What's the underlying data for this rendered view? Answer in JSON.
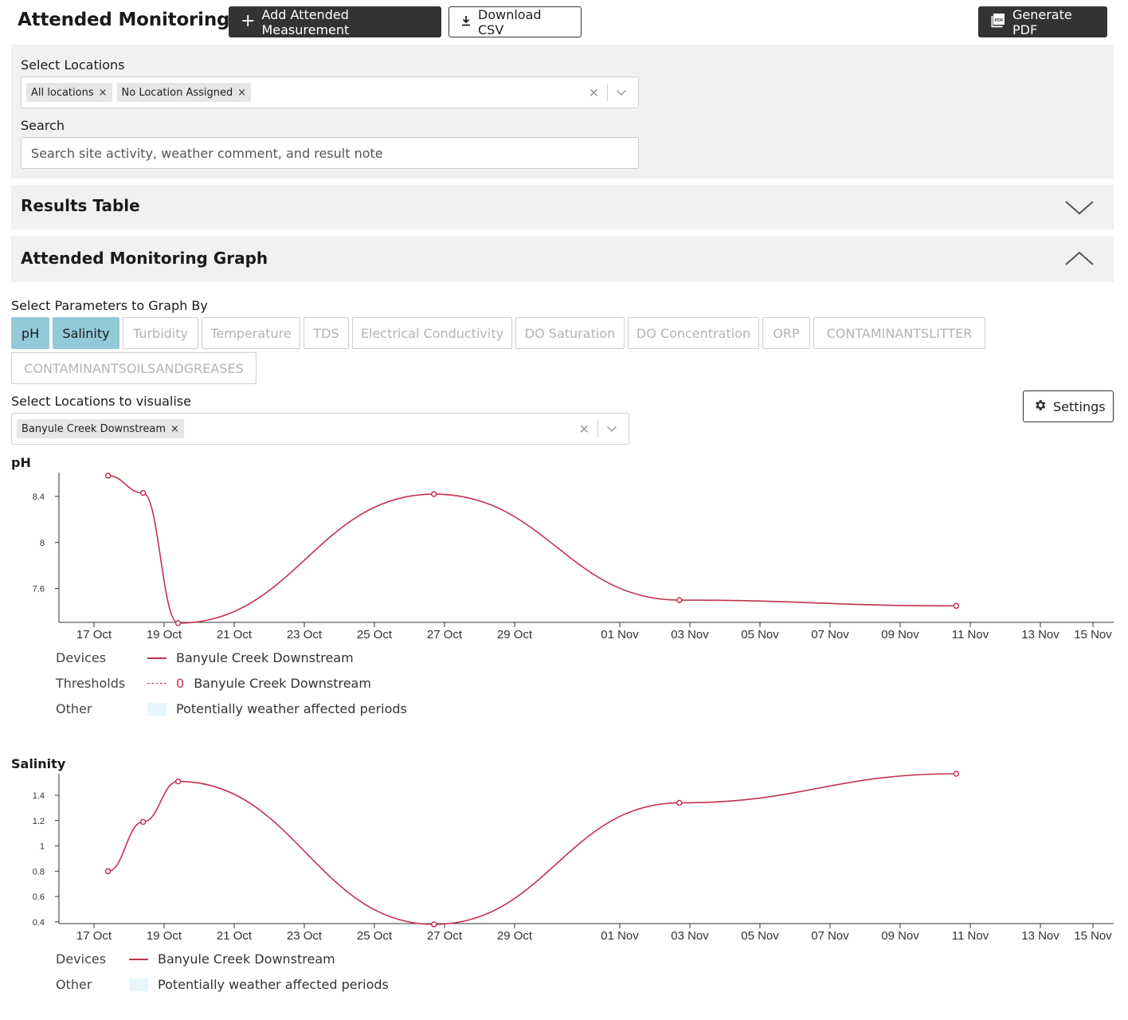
{
  "header": {
    "title": "Attended Monitoring",
    "add_label": "Add Attended Measurement",
    "csv_label": "Download CSV",
    "pdf_label": "Generate PDF"
  },
  "filters": {
    "locations_label": "Select Locations",
    "locations_chips": [
      "All locations",
      "No Location Assigned"
    ],
    "search_label": "Search",
    "search_placeholder": "Search site activity, weather comment, and result note"
  },
  "sections": {
    "results_table": "Results Table",
    "graph": "Attended Monitoring Graph"
  },
  "params": {
    "label": "Select Parameters to Graph By",
    "items": [
      "pH",
      "Salinity",
      "Turbidity",
      "Temperature",
      "TDS",
      "Electrical Conductivity",
      "DO Saturation",
      "DO Concentration",
      "ORP",
      "CONTAMINANTSLITTER",
      "CONTAMINANTSOILSANDGREASES"
    ],
    "selected": [
      "pH",
      "Salinity"
    ]
  },
  "visualise": {
    "label": "Select Locations to visualise",
    "chip": "Banyule Creek Downstream",
    "settings_label": "Settings"
  },
  "legend": {
    "devices": "Devices",
    "thresholds": "Thresholds",
    "other": "Other",
    "device_name": "Banyule Creek Downstream",
    "threshold_value": "0",
    "threshold_name": "Banyule Creek Downstream",
    "weather": "Potentially weather affected periods"
  },
  "colors": {
    "series": "#c2334f",
    "selected_param": "#93c9d8",
    "weather": "#e6f6fd"
  },
  "chart_data": [
    {
      "type": "line",
      "title": "pH",
      "x_ticks": [
        "17 Oct",
        "19 Oct",
        "21 Oct",
        "23 Oct",
        "25 Oct",
        "27 Oct",
        "29 Oct",
        "01 Nov",
        "03 Nov",
        "05 Nov",
        "07 Nov",
        "09 Nov",
        "11 Nov",
        "13 Nov",
        "15 Nov"
      ],
      "y_ticks": [
        7.6,
        8,
        8.4
      ],
      "ylim": [
        7.3,
        8.6
      ],
      "series": [
        {
          "name": "Banyule Creek Downstream",
          "x": [
            "17.4 Oct",
            "18.4 Oct",
            "19.4 Oct",
            "26.7 Oct",
            "02.7 Nov",
            "10.6 Nov"
          ],
          "x_days": [
            17.4,
            18.4,
            19.4,
            26.7,
            33.7,
            41.6
          ],
          "values": [
            8.58,
            8.43,
            7.3,
            8.42,
            7.5,
            7.45
          ]
        }
      ]
    },
    {
      "type": "line",
      "title": "Salinity",
      "x_ticks": [
        "17 Oct",
        "19 Oct",
        "21 Oct",
        "23 Oct",
        "25 Oct",
        "27 Oct",
        "29 Oct",
        "01 Nov",
        "03 Nov",
        "05 Nov",
        "07 Nov",
        "09 Nov",
        "11 Nov",
        "13 Nov",
        "15 Nov"
      ],
      "y_ticks": [
        0.4,
        0.6,
        0.8,
        1,
        1.2,
        1.4
      ],
      "ylim": [
        0.38,
        1.57
      ],
      "series": [
        {
          "name": "Banyule Creek Downstream",
          "x_days": [
            17.4,
            18.4,
            19.4,
            26.7,
            33.7,
            41.6
          ],
          "values": [
            0.8,
            1.19,
            1.51,
            0.38,
            1.34,
            1.57
          ]
        }
      ]
    }
  ]
}
